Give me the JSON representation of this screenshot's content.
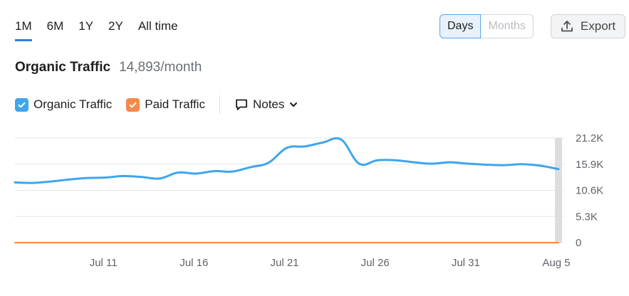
{
  "period_tabs": [
    {
      "label": "1M",
      "active": true
    },
    {
      "label": "6M",
      "active": false
    },
    {
      "label": "1Y",
      "active": false
    },
    {
      "label": "2Y",
      "active": false
    },
    {
      "label": "All time",
      "active": false
    }
  ],
  "view_toggle": {
    "days_label": "Days",
    "months_label": "Months",
    "selected": "Days"
  },
  "export": {
    "label": "Export",
    "icon": "upload-icon"
  },
  "heading": {
    "title": "Organic Traffic",
    "value": "14,893/month"
  },
  "legend": {
    "items": [
      {
        "label": "Organic Traffic",
        "checked": true,
        "color": "#3ea6ec"
      },
      {
        "label": "Paid Traffic",
        "checked": true,
        "color": "#f5894a"
      }
    ],
    "notes_label": "Notes",
    "notes_icon": "comment-icon",
    "notes_chevron": "chevron-down-icon"
  },
  "chart_data": {
    "type": "line",
    "x": [
      "Jul 6",
      "Jul 7",
      "Jul 8",
      "Jul 9",
      "Jul 10",
      "Jul 11",
      "Jul 12",
      "Jul 13",
      "Jul 14",
      "Jul 15",
      "Jul 16",
      "Jul 17",
      "Jul 18",
      "Jul 19",
      "Jul 20",
      "Jul 21",
      "Jul 22",
      "Jul 23",
      "Jul 24",
      "Jul 25",
      "Jul 26",
      "Jul 27",
      "Jul 28",
      "Jul 29",
      "Jul 30",
      "Jul 31",
      "Aug 1",
      "Aug 2",
      "Aug 3",
      "Aug 4",
      "Aug 5"
    ],
    "x_tick_labels": [
      "Jul 11",
      "Jul 16",
      "Jul 21",
      "Jul 26",
      "Jul 31",
      "Aug 5"
    ],
    "y_tick_labels": [
      "21.2K",
      "15.9K",
      "10.6K",
      "5.3K",
      "0"
    ],
    "y_ticks": [
      21200,
      15900,
      10600,
      5300,
      0
    ],
    "ylim": [
      0,
      21200
    ],
    "series": [
      {
        "name": "Organic Traffic",
        "color": "#3ea6ec",
        "values": [
          12200,
          12100,
          12400,
          12800,
          13100,
          13200,
          13500,
          13300,
          13000,
          14200,
          14000,
          14500,
          14400,
          15300,
          16200,
          19200,
          19500,
          20300,
          20900,
          16000,
          16700,
          16700,
          16300,
          16000,
          16300,
          16000,
          15800,
          15700,
          15900,
          15600,
          14900
        ]
      },
      {
        "name": "Paid Traffic",
        "color": "#f5894a",
        "values": [
          0,
          0,
          0,
          0,
          0,
          0,
          0,
          0,
          0,
          0,
          0,
          0,
          0,
          0,
          0,
          0,
          0,
          0,
          0,
          0,
          0,
          0,
          0,
          0,
          0,
          0,
          0,
          0,
          0,
          0,
          0
        ]
      }
    ],
    "grid": true,
    "legend": "top-left"
  }
}
